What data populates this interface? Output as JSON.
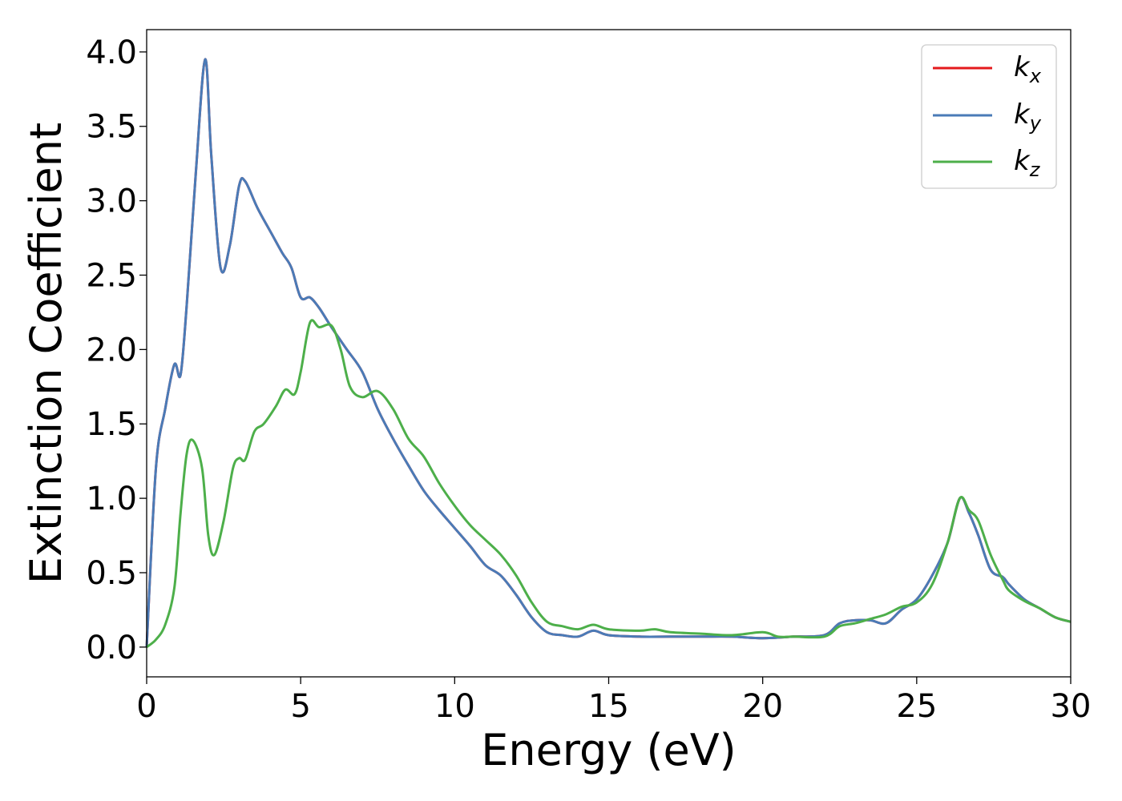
{
  "chart_data": {
    "type": "line",
    "xlabel": "Energy (eV)",
    "ylabel": "Extinction Coefficient",
    "xlim": [
      0,
      30
    ],
    "ylim": [
      -0.2,
      4.15
    ],
    "xticks": [
      0,
      5,
      10,
      15,
      20,
      25,
      30
    ],
    "xtick_labels": [
      "0",
      "5",
      "10",
      "15",
      "20",
      "25",
      "30"
    ],
    "yticks": [
      0.0,
      0.5,
      1.0,
      1.5,
      2.0,
      2.5,
      3.0,
      3.5,
      4.0
    ],
    "ytick_labels": [
      "0.0",
      "0.5",
      "1.0",
      "1.5",
      "2.0",
      "2.5",
      "3.0",
      "3.5",
      "4.0"
    ],
    "grid": false,
    "legend_position": "top-right",
    "series": [
      {
        "name": "k",
        "sub": "x",
        "color": "#e41a1c",
        "x": [
          0,
          0.3,
          0.6,
          0.9,
          1.1,
          1.3,
          1.6,
          1.9,
          2.1,
          2.4,
          2.7,
          3.0,
          3.2,
          3.6,
          4.0,
          4.4,
          4.7,
          5.0,
          5.3,
          5.6,
          6.0,
          6.5,
          7.0,
          7.5,
          8.0,
          8.5,
          9.0,
          9.5,
          10.0,
          10.5,
          11.0,
          11.5,
          12.0,
          12.5,
          13.0,
          13.5,
          14.0,
          14.5,
          15.0,
          16.0,
          17.0,
          18.0,
          19.0,
          20.0,
          21.0,
          22.0,
          22.5,
          23.0,
          23.5,
          24.0,
          24.5,
          25.0,
          25.5,
          26.0,
          26.4,
          26.7,
          27.0,
          27.4,
          27.8,
          28.0,
          28.5,
          29.0,
          29.5,
          30.0
        ],
        "y": [
          0.0,
          1.2,
          1.6,
          1.9,
          1.83,
          2.3,
          3.2,
          3.95,
          3.3,
          2.55,
          2.7,
          3.1,
          3.13,
          2.95,
          2.8,
          2.65,
          2.55,
          2.35,
          2.35,
          2.28,
          2.15,
          2.0,
          1.85,
          1.6,
          1.4,
          1.22,
          1.05,
          0.92,
          0.8,
          0.68,
          0.55,
          0.48,
          0.35,
          0.2,
          0.1,
          0.08,
          0.07,
          0.11,
          0.08,
          0.07,
          0.07,
          0.07,
          0.07,
          0.06,
          0.07,
          0.08,
          0.16,
          0.18,
          0.18,
          0.16,
          0.25,
          0.32,
          0.48,
          0.7,
          1.0,
          0.9,
          0.75,
          0.52,
          0.47,
          0.42,
          0.32,
          0.26,
          0.2,
          0.17
        ]
      },
      {
        "name": "k",
        "sub": "y",
        "color": "#4a7bb7",
        "x": [
          0,
          0.3,
          0.6,
          0.9,
          1.1,
          1.3,
          1.6,
          1.9,
          2.1,
          2.4,
          2.7,
          3.0,
          3.2,
          3.6,
          4.0,
          4.4,
          4.7,
          5.0,
          5.3,
          5.6,
          6.0,
          6.5,
          7.0,
          7.5,
          8.0,
          8.5,
          9.0,
          9.5,
          10.0,
          10.5,
          11.0,
          11.5,
          12.0,
          12.5,
          13.0,
          13.5,
          14.0,
          14.5,
          15.0,
          16.0,
          17.0,
          18.0,
          19.0,
          20.0,
          21.0,
          22.0,
          22.5,
          23.0,
          23.5,
          24.0,
          24.5,
          25.0,
          25.5,
          26.0,
          26.4,
          26.7,
          27.0,
          27.4,
          27.8,
          28.0,
          28.5,
          29.0,
          29.5,
          30.0
        ],
        "y": [
          0.0,
          1.2,
          1.6,
          1.9,
          1.83,
          2.3,
          3.2,
          3.95,
          3.3,
          2.55,
          2.7,
          3.1,
          3.13,
          2.95,
          2.8,
          2.65,
          2.55,
          2.35,
          2.35,
          2.28,
          2.15,
          2.0,
          1.85,
          1.6,
          1.4,
          1.22,
          1.05,
          0.92,
          0.8,
          0.68,
          0.55,
          0.48,
          0.35,
          0.2,
          0.1,
          0.08,
          0.07,
          0.11,
          0.08,
          0.07,
          0.07,
          0.07,
          0.07,
          0.06,
          0.07,
          0.08,
          0.16,
          0.18,
          0.18,
          0.16,
          0.25,
          0.32,
          0.48,
          0.7,
          1.0,
          0.9,
          0.75,
          0.52,
          0.47,
          0.42,
          0.32,
          0.26,
          0.2,
          0.17
        ]
      },
      {
        "name": "k",
        "sub": "z",
        "color": "#4daf4a",
        "x": [
          0,
          0.3,
          0.6,
          0.9,
          1.1,
          1.3,
          1.5,
          1.8,
          2.0,
          2.2,
          2.5,
          2.8,
          3.0,
          3.2,
          3.5,
          3.8,
          4.2,
          4.5,
          4.8,
          5.0,
          5.3,
          5.6,
          6.0,
          6.3,
          6.6,
          7.0,
          7.5,
          8.0,
          8.5,
          9.0,
          9.5,
          10.0,
          10.5,
          11.0,
          11.5,
          12.0,
          12.5,
          13.0,
          13.5,
          14.0,
          14.5,
          15.0,
          16.0,
          16.5,
          17.0,
          18.0,
          19.0,
          20.0,
          20.5,
          21.0,
          22.0,
          22.5,
          23.0,
          23.5,
          24.0,
          24.5,
          25.0,
          25.5,
          26.0,
          26.4,
          26.7,
          27.0,
          27.4,
          27.8,
          28.0,
          28.5,
          29.0,
          29.5,
          30.0
        ],
        "y": [
          0.0,
          0.05,
          0.15,
          0.4,
          0.9,
          1.3,
          1.39,
          1.2,
          0.75,
          0.62,
          0.85,
          1.2,
          1.27,
          1.26,
          1.45,
          1.5,
          1.62,
          1.73,
          1.7,
          1.85,
          2.18,
          2.15,
          2.16,
          2.0,
          1.75,
          1.68,
          1.72,
          1.6,
          1.4,
          1.28,
          1.1,
          0.95,
          0.82,
          0.72,
          0.62,
          0.48,
          0.3,
          0.17,
          0.14,
          0.12,
          0.15,
          0.12,
          0.11,
          0.12,
          0.1,
          0.09,
          0.08,
          0.1,
          0.07,
          0.07,
          0.07,
          0.14,
          0.16,
          0.19,
          0.22,
          0.27,
          0.3,
          0.42,
          0.7,
          1.0,
          0.92,
          0.85,
          0.62,
          0.45,
          0.38,
          0.31,
          0.26,
          0.2,
          0.17
        ]
      }
    ]
  }
}
